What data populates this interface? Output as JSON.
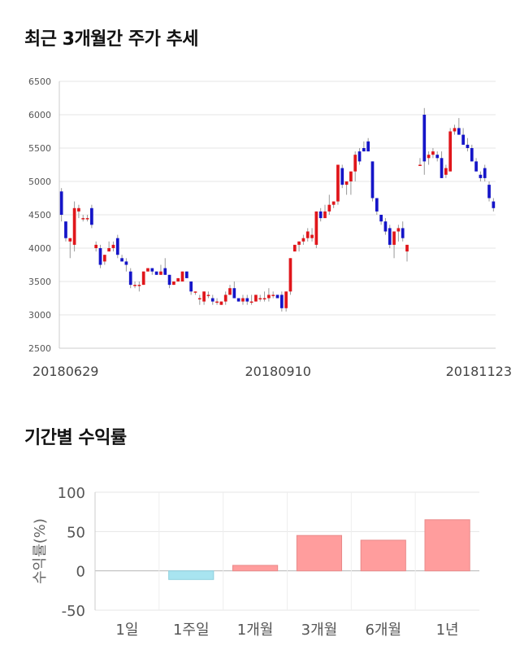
{
  "titles": {
    "price": "최근 3개월간 주가 추세",
    "returns": "기간별 수익률"
  },
  "chart_data": [
    {
      "type": "candlestick",
      "title": "최근 3개월간 주가 추세",
      "ylim": [
        2500,
        6500
      ],
      "yticks": [
        2500,
        3000,
        3500,
        4000,
        4500,
        5000,
        5500,
        6000,
        6500
      ],
      "xlabels": [
        "20180629",
        "20180910",
        "20181123"
      ],
      "grid": true,
      "colors": {
        "up": "#e0161b",
        "down": "#1515c8",
        "wick": "#999999"
      },
      "candles": [
        [
          4850,
          4900,
          4400,
          4500
        ],
        [
          4400,
          4400,
          4100,
          4150
        ],
        [
          4100,
          4150,
          3850,
          4150
        ],
        [
          4050,
          4700,
          3950,
          4600
        ],
        [
          4550,
          4650,
          4450,
          4600
        ],
        [
          4450,
          4500,
          4400,
          4450
        ],
        [
          4450,
          4500,
          4400,
          4450
        ],
        [
          4600,
          4650,
          4300,
          4350
        ],
        [
          4000,
          4100,
          3950,
          4050
        ],
        [
          4000,
          4050,
          3700,
          3750
        ],
        [
          3800,
          3900,
          3750,
          3900
        ],
        [
          3950,
          4100,
          3950,
          4000
        ],
        [
          4000,
          4100,
          3950,
          4050
        ],
        [
          4150,
          4200,
          3850,
          3900
        ],
        [
          3850,
          3900,
          3800,
          3800
        ],
        [
          3800,
          3850,
          3650,
          3750
        ],
        [
          3650,
          3700,
          3400,
          3450
        ],
        [
          3450,
          3500,
          3400,
          3450
        ],
        [
          3450,
          3500,
          3350,
          3450
        ],
        [
          3450,
          3650,
          3450,
          3650
        ],
        [
          3650,
          3700,
          3650,
          3700
        ],
        [
          3700,
          3700,
          3600,
          3650
        ],
        [
          3650,
          3650,
          3600,
          3600
        ],
        [
          3600,
          3750,
          3600,
          3650
        ],
        [
          3700,
          3850,
          3600,
          3600
        ],
        [
          3600,
          3600,
          3400,
          3450
        ],
        [
          3450,
          3500,
          3450,
          3500
        ],
        [
          3500,
          3550,
          3500,
          3550
        ],
        [
          3500,
          3650,
          3500,
          3650
        ],
        [
          3650,
          3650,
          3550,
          3550
        ],
        [
          3500,
          3500,
          3300,
          3350
        ],
        [
          3350,
          3350,
          3300,
          3350
        ],
        [
          3250,
          3300,
          3150,
          3250
        ],
        [
          3200,
          3350,
          3150,
          3350
        ],
        [
          3300,
          3350,
          3250,
          3300
        ],
        [
          3250,
          3300,
          3150,
          3200
        ],
        [
          3200,
          3250,
          3150,
          3200
        ],
        [
          3150,
          3200,
          3150,
          3200
        ],
        [
          3200,
          3350,
          3150,
          3300
        ],
        [
          3300,
          3450,
          3300,
          3400
        ],
        [
          3400,
          3500,
          3250,
          3250
        ],
        [
          3250,
          3250,
          3200,
          3200
        ],
        [
          3200,
          3300,
          3150,
          3250
        ],
        [
          3250,
          3300,
          3150,
          3200
        ],
        [
          3200,
          3300,
          3150,
          3200
        ],
        [
          3200,
          3300,
          3200,
          3300
        ],
        [
          3250,
          3300,
          3200,
          3250
        ],
        [
          3250,
          3350,
          3200,
          3250
        ],
        [
          3250,
          3400,
          3200,
          3300
        ],
        [
          3300,
          3350,
          3250,
          3300
        ],
        [
          3300,
          3300,
          3250,
          3250
        ],
        [
          3300,
          3350,
          3050,
          3100
        ],
        [
          3100,
          3350,
          3050,
          3350
        ],
        [
          3350,
          3850,
          3300,
          3850
        ],
        [
          3950,
          4050,
          3950,
          4050
        ],
        [
          4050,
          4100,
          3950,
          4100
        ],
        [
          4100,
          4200,
          4050,
          4150
        ],
        [
          4150,
          4300,
          4100,
          4250
        ],
        [
          4150,
          4300,
          4100,
          4200
        ],
        [
          4050,
          4550,
          4000,
          4550
        ],
        [
          4550,
          4600,
          4400,
          4450
        ],
        [
          4450,
          4650,
          4450,
          4550
        ],
        [
          4550,
          4800,
          4500,
          4650
        ],
        [
          4650,
          4700,
          4600,
          4700
        ],
        [
          4700,
          5250,
          4650,
          5250
        ],
        [
          5200,
          5250,
          4900,
          4950
        ],
        [
          4950,
          5000,
          4800,
          5000
        ],
        [
          5000,
          5100,
          4800,
          5150
        ],
        [
          5150,
          5450,
          5000,
          5400
        ],
        [
          5450,
          5500,
          5250,
          5300
        ],
        [
          5500,
          5600,
          5450,
          5450
        ],
        [
          5600,
          5650,
          5450,
          5450
        ],
        [
          5300,
          5300,
          4700,
          4750
        ],
        [
          4750,
          4750,
          4500,
          4550
        ],
        [
          4500,
          4500,
          4350,
          4400
        ],
        [
          4400,
          4450,
          4200,
          4250
        ],
        [
          4300,
          4350,
          4000,
          4050
        ],
        [
          4050,
          4250,
          3850,
          4250
        ],
        [
          4250,
          4350,
          4100,
          4300
        ],
        [
          4300,
          4400,
          4100,
          4150
        ],
        [
          3950,
          4050,
          3800,
          4050
        ],
        null,
        null,
        [
          5250,
          5350,
          5250,
          5250
        ],
        [
          6000,
          6100,
          5100,
          5300
        ],
        [
          5350,
          5450,
          5250,
          5400
        ],
        [
          5400,
          5500,
          5350,
          5450
        ],
        [
          5400,
          5450,
          5300,
          5350
        ],
        [
          5350,
          5450,
          5050,
          5050
        ],
        [
          5100,
          5250,
          5050,
          5200
        ],
        [
          5150,
          5800,
          5150,
          5750
        ],
        [
          5750,
          5850,
          5700,
          5800
        ],
        [
          5800,
          5950,
          5700,
          5700
        ],
        [
          5700,
          5800,
          5550,
          5550
        ],
        [
          5550,
          5650,
          5450,
          5500
        ],
        [
          5500,
          5550,
          5300,
          5300
        ],
        [
          5300,
          5350,
          5150,
          5150
        ],
        [
          5100,
          5150,
          5000,
          5050
        ],
        [
          5200,
          5250,
          5000,
          5050
        ],
        [
          4950,
          5000,
          4700,
          4750
        ],
        [
          4700,
          4750,
          4550,
          4600
        ]
      ]
    },
    {
      "type": "bar",
      "title": "기간별 수익률",
      "ylabel": "수익률(%)",
      "ylim": [
        -50,
        100
      ],
      "yticks": [
        100,
        50,
        0,
        -50
      ],
      "categories": [
        "1일",
        "1주일",
        "1개월",
        "3개월",
        "6개월",
        "1년"
      ],
      "values": [
        0,
        -11,
        7,
        45,
        39,
        65
      ],
      "colors": {
        "positive": "#ff9d9d",
        "negative": "#a8e4f0"
      }
    }
  ]
}
